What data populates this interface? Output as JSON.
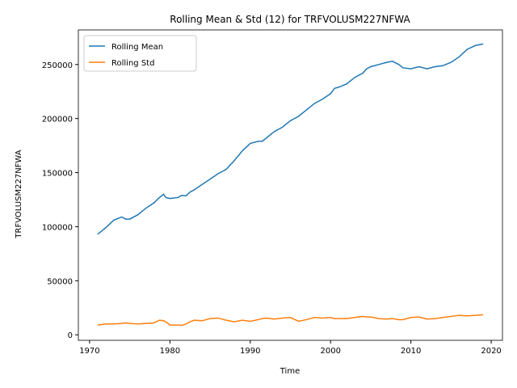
{
  "chart_data": {
    "type": "line",
    "title": "Rolling Mean & Std (12) for TRFVOLUSM227NFWA",
    "x_label": "Time",
    "y_label": "TRFVOLUSM227NFWA",
    "legend": "upper left",
    "xlim": [
      1968.6,
      2021.4
    ],
    "xticks": [
      1970,
      1980,
      1990,
      2000,
      2010,
      2020
    ],
    "ylim": [
      -5100,
      282000
    ],
    "yticks": [
      0,
      50000,
      100000,
      150000,
      200000,
      250000
    ],
    "x": [
      1971,
      1972,
      1973,
      1974,
      1974.5,
      1975,
      1976,
      1977,
      1978,
      1978.7,
      1979.2,
      1979.5,
      1980,
      1981,
      1981.5,
      1982,
      1982.5,
      1983,
      1984,
      1985,
      1986,
      1987,
      1988,
      1989,
      1990,
      1991,
      1991.5,
      1992,
      1993,
      1994,
      1995,
      1996,
      1997,
      1998,
      1999,
      2000,
      2000.5,
      2001,
      2002,
      2003,
      2004,
      2004.5,
      2005,
      2006,
      2007,
      2007.7,
      2008.5,
      2009,
      2010,
      2011,
      2012,
      2013,
      2014,
      2015,
      2016,
      2017,
      2018,
      2019
    ],
    "series": [
      {
        "name": "Rolling Mean",
        "color": "#1f77b4",
        "values": [
          93000,
          99000,
          106000,
          109000,
          107000,
          107000,
          111000,
          117000,
          122000,
          127000,
          130000,
          127000,
          126000,
          127000,
          129000,
          128500,
          132000,
          134000,
          139000,
          144000,
          149000,
          153000,
          161000,
          170000,
          177000,
          179000,
          179000,
          182000,
          188000,
          192000,
          198000,
          202000,
          208000,
          214000,
          218000,
          223000,
          228000,
          229000,
          232000,
          238000,
          242000,
          246000,
          248000,
          250000,
          252000,
          253000,
          250000,
          247000,
          246000,
          248000,
          246000,
          248000,
          249000,
          252000,
          257000,
          264000,
          267500,
          269000
        ]
      },
      {
        "name": "Rolling Std",
        "color": "#ff7f0e",
        "values": [
          9000,
          10000,
          10000,
          10500,
          11000,
          10500,
          10000,
          10500,
          11000,
          13500,
          13000,
          12000,
          9000,
          9000,
          8700,
          10000,
          12000,
          13500,
          13000,
          15000,
          15500,
          13500,
          12000,
          13500,
          12500,
          14000,
          15000,
          15500,
          14500,
          15500,
          16000,
          12500,
          14000,
          16000,
          15500,
          16000,
          15000,
          15000,
          15000,
          16000,
          17000,
          16500,
          16500,
          15000,
          14500,
          15000,
          14000,
          14000,
          16000,
          16500,
          14500,
          15000,
          16000,
          17000,
          18000,
          17500,
          18000,
          18500
        ]
      }
    ]
  }
}
